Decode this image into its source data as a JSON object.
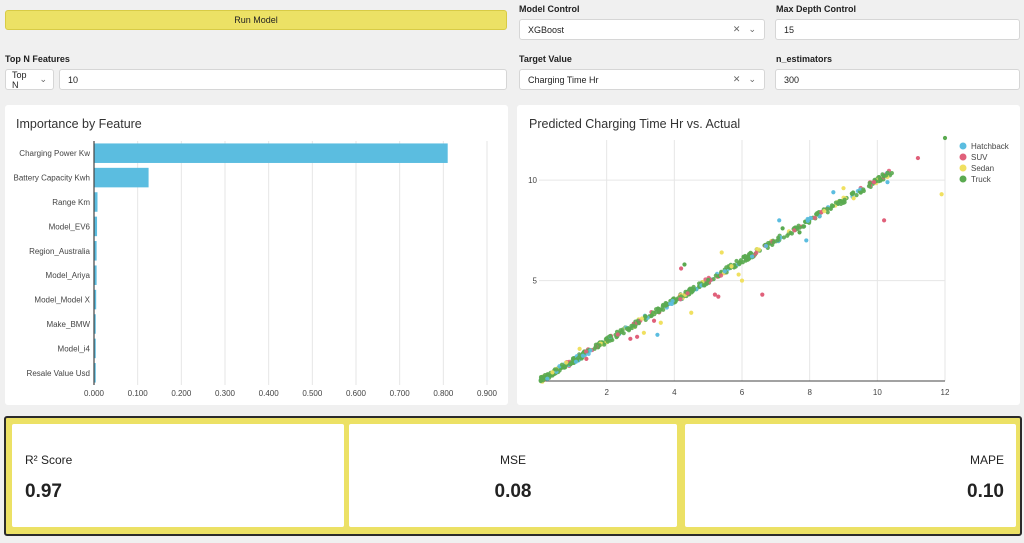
{
  "controls": {
    "run_button": "Run Model",
    "model_control": {
      "label": "Model Control",
      "value": "XGBoost"
    },
    "max_depth": {
      "label": "Max Depth Control",
      "value": "15"
    },
    "top_n": {
      "label": "Top N Features",
      "select": "Top N",
      "value": "10"
    },
    "target_value": {
      "label": "Target Value",
      "value": "Charging Time Hr"
    },
    "n_estimators": {
      "label": "n_estimators",
      "value": "300"
    }
  },
  "importance_chart": {
    "title": "Importance by Feature",
    "bar_color": "#5bbde0",
    "chart_data": {
      "type": "bar",
      "orientation": "horizontal",
      "categories": [
        "Charging Power Kw",
        "Battery Capacity Kwh",
        "Range Km",
        "Model_EV6",
        "Region_Australia",
        "Model_Ariya",
        "Model_Model X",
        "Make_BMW",
        "Model_i4",
        "Resale Value Usd"
      ],
      "values": [
        0.81,
        0.125,
        0.008,
        0.007,
        0.006,
        0.006,
        0.005,
        0.004,
        0.004,
        0.004
      ],
      "xlim": [
        0,
        0.9
      ],
      "xticks": [
        "0.000",
        "0.100",
        "0.200",
        "0.300",
        "0.400",
        "0.500",
        "0.600",
        "0.700",
        "0.800",
        "0.900"
      ]
    }
  },
  "scatter_chart": {
    "title": "Predicted Charging Time Hr vs. Actual",
    "chart_data": {
      "type": "scatter",
      "xlim": [
        0,
        12
      ],
      "ylim": [
        0,
        12
      ],
      "xticks": [
        "2",
        "4",
        "6",
        "8",
        "10",
        "12"
      ],
      "yticks": [
        "5",
        "10"
      ],
      "legend": [
        {
          "name": "Hatchback",
          "color": "#5bbde0"
        },
        {
          "name": "SUV",
          "color": "#e0607a"
        },
        {
          "name": "Sedan",
          "color": "#f0e060"
        },
        {
          "name": "Truck",
          "color": "#5aaa50"
        }
      ],
      "outliers": [
        {
          "x": 2.7,
          "y": 2.1,
          "s": 1
        },
        {
          "x": 2.9,
          "y": 2.2,
          "s": 1
        },
        {
          "x": 3.1,
          "y": 2.4,
          "s": 2
        },
        {
          "x": 4.2,
          "y": 5.6,
          "s": 1
        },
        {
          "x": 4.3,
          "y": 5.8,
          "s": 3
        },
        {
          "x": 5.2,
          "y": 4.3,
          "s": 1
        },
        {
          "x": 5.3,
          "y": 4.2,
          "s": 1
        },
        {
          "x": 5.4,
          "y": 6.4,
          "s": 2
        },
        {
          "x": 5.9,
          "y": 5.3,
          "s": 2
        },
        {
          "x": 6.6,
          "y": 4.3,
          "s": 1
        },
        {
          "x": 7.1,
          "y": 8.0,
          "s": 0
        },
        {
          "x": 7.2,
          "y": 7.6,
          "s": 3
        },
        {
          "x": 7.7,
          "y": 7.4,
          "s": 3
        },
        {
          "x": 7.9,
          "y": 7.0,
          "s": 0
        },
        {
          "x": 8.7,
          "y": 9.4,
          "s": 0
        },
        {
          "x": 9.3,
          "y": 9.1,
          "s": 2
        },
        {
          "x": 9.9,
          "y": 9.9,
          "s": 1
        },
        {
          "x": 10.2,
          "y": 8.0,
          "s": 1
        },
        {
          "x": 10.3,
          "y": 9.9,
          "s": 0
        },
        {
          "x": 11.9,
          "y": 9.3,
          "s": 2
        },
        {
          "x": 12.0,
          "y": 12.1,
          "s": 3
        },
        {
          "x": 11.2,
          "y": 11.1,
          "s": 1
        },
        {
          "x": 3.5,
          "y": 2.3,
          "s": 0
        },
        {
          "x": 3.4,
          "y": 3.0,
          "s": 1
        },
        {
          "x": 3.6,
          "y": 2.9,
          "s": 2
        },
        {
          "x": 4.5,
          "y": 3.4,
          "s": 2
        },
        {
          "x": 6.0,
          "y": 5.0,
          "s": 2
        },
        {
          "x": 1.2,
          "y": 1.6,
          "s": 2
        },
        {
          "x": 1.4,
          "y": 1.1,
          "s": 1
        },
        {
          "x": 9.0,
          "y": 9.6,
          "s": 2
        }
      ]
    }
  },
  "metrics": {
    "r2": {
      "label": "R² Score",
      "value": "0.97"
    },
    "mse": {
      "label": "MSE",
      "value": "0.08"
    },
    "mape": {
      "label": "MAPE",
      "value": "0.10"
    }
  }
}
